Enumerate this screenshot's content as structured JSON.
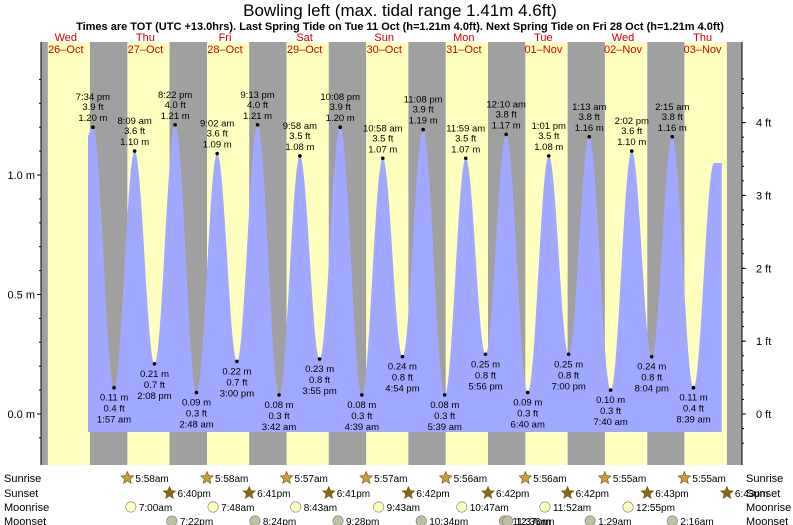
{
  "header": {
    "title": "Bowling left (max. tidal range 1.41m 4.6ft)",
    "subtitle": "Times are TOT (UTC +13.0hrs). Last Spring Tide on Tue 11 Oct (h=1.21m 4.0ft). Next Spring Tide on Fri 28 Oct (h=1.21m 4.0ft)"
  },
  "colors": {
    "day": "#ffffc0",
    "night": "#a0a0a0",
    "tide": "#a0a8ff",
    "day_label": "#cc0000",
    "star": "#c8a030",
    "sunset_star": "#8b6914",
    "moonrise": "#ffffc0",
    "moonset": "#c0c0a0"
  },
  "days": [
    {
      "dow": "Wed",
      "date": "26–Oct"
    },
    {
      "dow": "Thu",
      "date": "27–Oct"
    },
    {
      "dow": "Fri",
      "date": "28–Oct"
    },
    {
      "dow": "Sat",
      "date": "29–Oct"
    },
    {
      "dow": "Sun",
      "date": "30–Oct"
    },
    {
      "dow": "Mon",
      "date": "31–Oct"
    },
    {
      "dow": "Tue",
      "date": "01–Nov"
    },
    {
      "dow": "Wed",
      "date": "02–Nov"
    },
    {
      "dow": "Thu",
      "date": "03–Nov"
    }
  ],
  "rows": {
    "sunrise": {
      "label": "Sunrise",
      "times": [
        "5:58am",
        "5:58am",
        "5:57am",
        "5:57am",
        "5:56am",
        "5:56am",
        "5:55am",
        "5:55am"
      ]
    },
    "sunset": {
      "label": "Sunset",
      "times": [
        "6:40pm",
        "6:41pm",
        "6:41pm",
        "6:42pm",
        "6:42pm",
        "6:42pm",
        "6:43pm",
        "6:43pm"
      ]
    },
    "moonrise": {
      "label": "Moonrise",
      "times": [
        "7:00am",
        "7:48am",
        "8:43am",
        "9:43am",
        "10:47am",
        "11:52am",
        "12:55pm"
      ]
    },
    "moonset": {
      "label": "Moonset",
      "times": [
        "7:22pm",
        "8:24pm",
        "9:28pm",
        "10:34pm",
        "11:37pm",
        "12:36am",
        "1:29am",
        "2:16am"
      ]
    }
  },
  "chart_data": {
    "type": "area",
    "title": "Bowling left (max. tidal range 1.41m 4.6ft)",
    "y_left": {
      "ticks": [
        "0.0 m",
        "0.5 m",
        "1.0 m"
      ],
      "values": [
        0,
        0.5,
        1.0
      ]
    },
    "y_right": {
      "ticks": [
        "0 ft",
        "1 ft",
        "2 ft",
        "3 ft",
        "4 ft"
      ],
      "values": [
        0,
        1,
        2,
        3,
        4
      ]
    },
    "ylim_m": [
      -0.15,
      1.52
    ],
    "x_start": "Wed 26-Oct 00:00",
    "x_end": "Thu 03-Nov 24:00",
    "series": [
      {
        "values": [
          {
            "day": 0,
            "time": "7:34 pm",
            "m": 1.2,
            "ft": "3.9 ft",
            "label_m": "1.20 m",
            "kind": "high"
          },
          {
            "day": 1,
            "time": "1:57 am",
            "m": 0.11,
            "ft": "0.4 ft",
            "label_m": "0.11 m",
            "kind": "low"
          },
          {
            "day": 1,
            "time": "8:09 am",
            "m": 1.1,
            "ft": "3.6 ft",
            "label_m": "1.10 m",
            "kind": "high"
          },
          {
            "day": 1,
            "time": "2:08 pm",
            "m": 0.21,
            "ft": "0.7 ft",
            "label_m": "0.21 m",
            "kind": "low"
          },
          {
            "day": 1,
            "time": "8:22 pm",
            "m": 1.21,
            "ft": "4.0 ft",
            "label_m": "1.21 m",
            "kind": "high"
          },
          {
            "day": 2,
            "time": "2:48 am",
            "m": 0.09,
            "ft": "0.3 ft",
            "label_m": "0.09 m",
            "kind": "low"
          },
          {
            "day": 2,
            "time": "9:02 am",
            "m": 1.09,
            "ft": "3.6 ft",
            "label_m": "1.09 m",
            "kind": "high"
          },
          {
            "day": 2,
            "time": "3:00 pm",
            "m": 0.22,
            "ft": "0.7 ft",
            "label_m": "0.22 m",
            "kind": "low"
          },
          {
            "day": 2,
            "time": "9:13 pm",
            "m": 1.21,
            "ft": "4.0 ft",
            "label_m": "1.21 m",
            "kind": "high"
          },
          {
            "day": 3,
            "time": "3:42 am",
            "m": 0.08,
            "ft": "0.3 ft",
            "label_m": "0.08 m",
            "kind": "low"
          },
          {
            "day": 3,
            "time": "9:58 am",
            "m": 1.08,
            "ft": "3.5 ft",
            "label_m": "1.08 m",
            "kind": "high"
          },
          {
            "day": 3,
            "time": "3:55 pm",
            "m": 0.23,
            "ft": "0.8 ft",
            "label_m": "0.23 m",
            "kind": "low"
          },
          {
            "day": 3,
            "time": "10:08 pm",
            "m": 1.2,
            "ft": "3.9 ft",
            "label_m": "1.20 m",
            "kind": "high"
          },
          {
            "day": 4,
            "time": "4:39 am",
            "m": 0.08,
            "ft": "0.3 ft",
            "label_m": "0.08 m",
            "kind": "low"
          },
          {
            "day": 4,
            "time": "10:58 am",
            "m": 1.07,
            "ft": "3.5 ft",
            "label_m": "1.07 m",
            "kind": "high"
          },
          {
            "day": 4,
            "time": "4:54 pm",
            "m": 0.24,
            "ft": "0.8 ft",
            "label_m": "0.24 m",
            "kind": "low"
          },
          {
            "day": 4,
            "time": "11:08 pm",
            "m": 1.19,
            "ft": "3.9 ft",
            "label_m": "1.19 m",
            "kind": "high"
          },
          {
            "day": 5,
            "time": "5:39 am",
            "m": 0.08,
            "ft": "0.3 ft",
            "label_m": "0.08 m",
            "kind": "low"
          },
          {
            "day": 5,
            "time": "11:59 am",
            "m": 1.07,
            "ft": "3.5 ft",
            "label_m": "1.07 m",
            "kind": "high"
          },
          {
            "day": 5,
            "time": "5:56 pm",
            "m": 0.25,
            "ft": "0.8 ft",
            "label_m": "0.25 m",
            "kind": "low"
          },
          {
            "day": 6,
            "time": "12:10 am",
            "m": 1.17,
            "ft": "3.8 ft",
            "label_m": "1.17 m",
            "kind": "high"
          },
          {
            "day": 6,
            "time": "6:40 am",
            "m": 0.09,
            "ft": "0.3 ft",
            "label_m": "0.09 m",
            "kind": "low"
          },
          {
            "day": 6,
            "time": "1:01 pm",
            "m": 1.08,
            "ft": "3.5 ft",
            "label_m": "1.08 m",
            "kind": "high"
          },
          {
            "day": 6,
            "time": "7:00 pm",
            "m": 0.25,
            "ft": "0.8 ft",
            "label_m": "0.25 m",
            "kind": "low"
          },
          {
            "day": 7,
            "time": "1:13 am",
            "m": 1.16,
            "ft": "3.8 ft",
            "label_m": "1.16 m",
            "kind": "high"
          },
          {
            "day": 7,
            "time": "7:40 am",
            "m": 0.1,
            "ft": "0.3 ft",
            "label_m": "0.10 m",
            "kind": "low"
          },
          {
            "day": 7,
            "time": "2:02 pm",
            "m": 1.1,
            "ft": "3.6 ft",
            "label_m": "1.10 m",
            "kind": "high"
          },
          {
            "day": 7,
            "time": "8:04 pm",
            "m": 0.24,
            "ft": "0.8 ft",
            "label_m": "0.24 m",
            "kind": "low"
          },
          {
            "day": 8,
            "time": "2:15 am",
            "m": 1.16,
            "ft": "3.8 ft",
            "label_m": "1.16 m",
            "kind": "high"
          },
          {
            "day": 8,
            "time": "8:39 am",
            "m": 0.11,
            "ft": "0.4 ft",
            "label_m": "0.11 m",
            "kind": "low"
          }
        ]
      }
    ]
  }
}
